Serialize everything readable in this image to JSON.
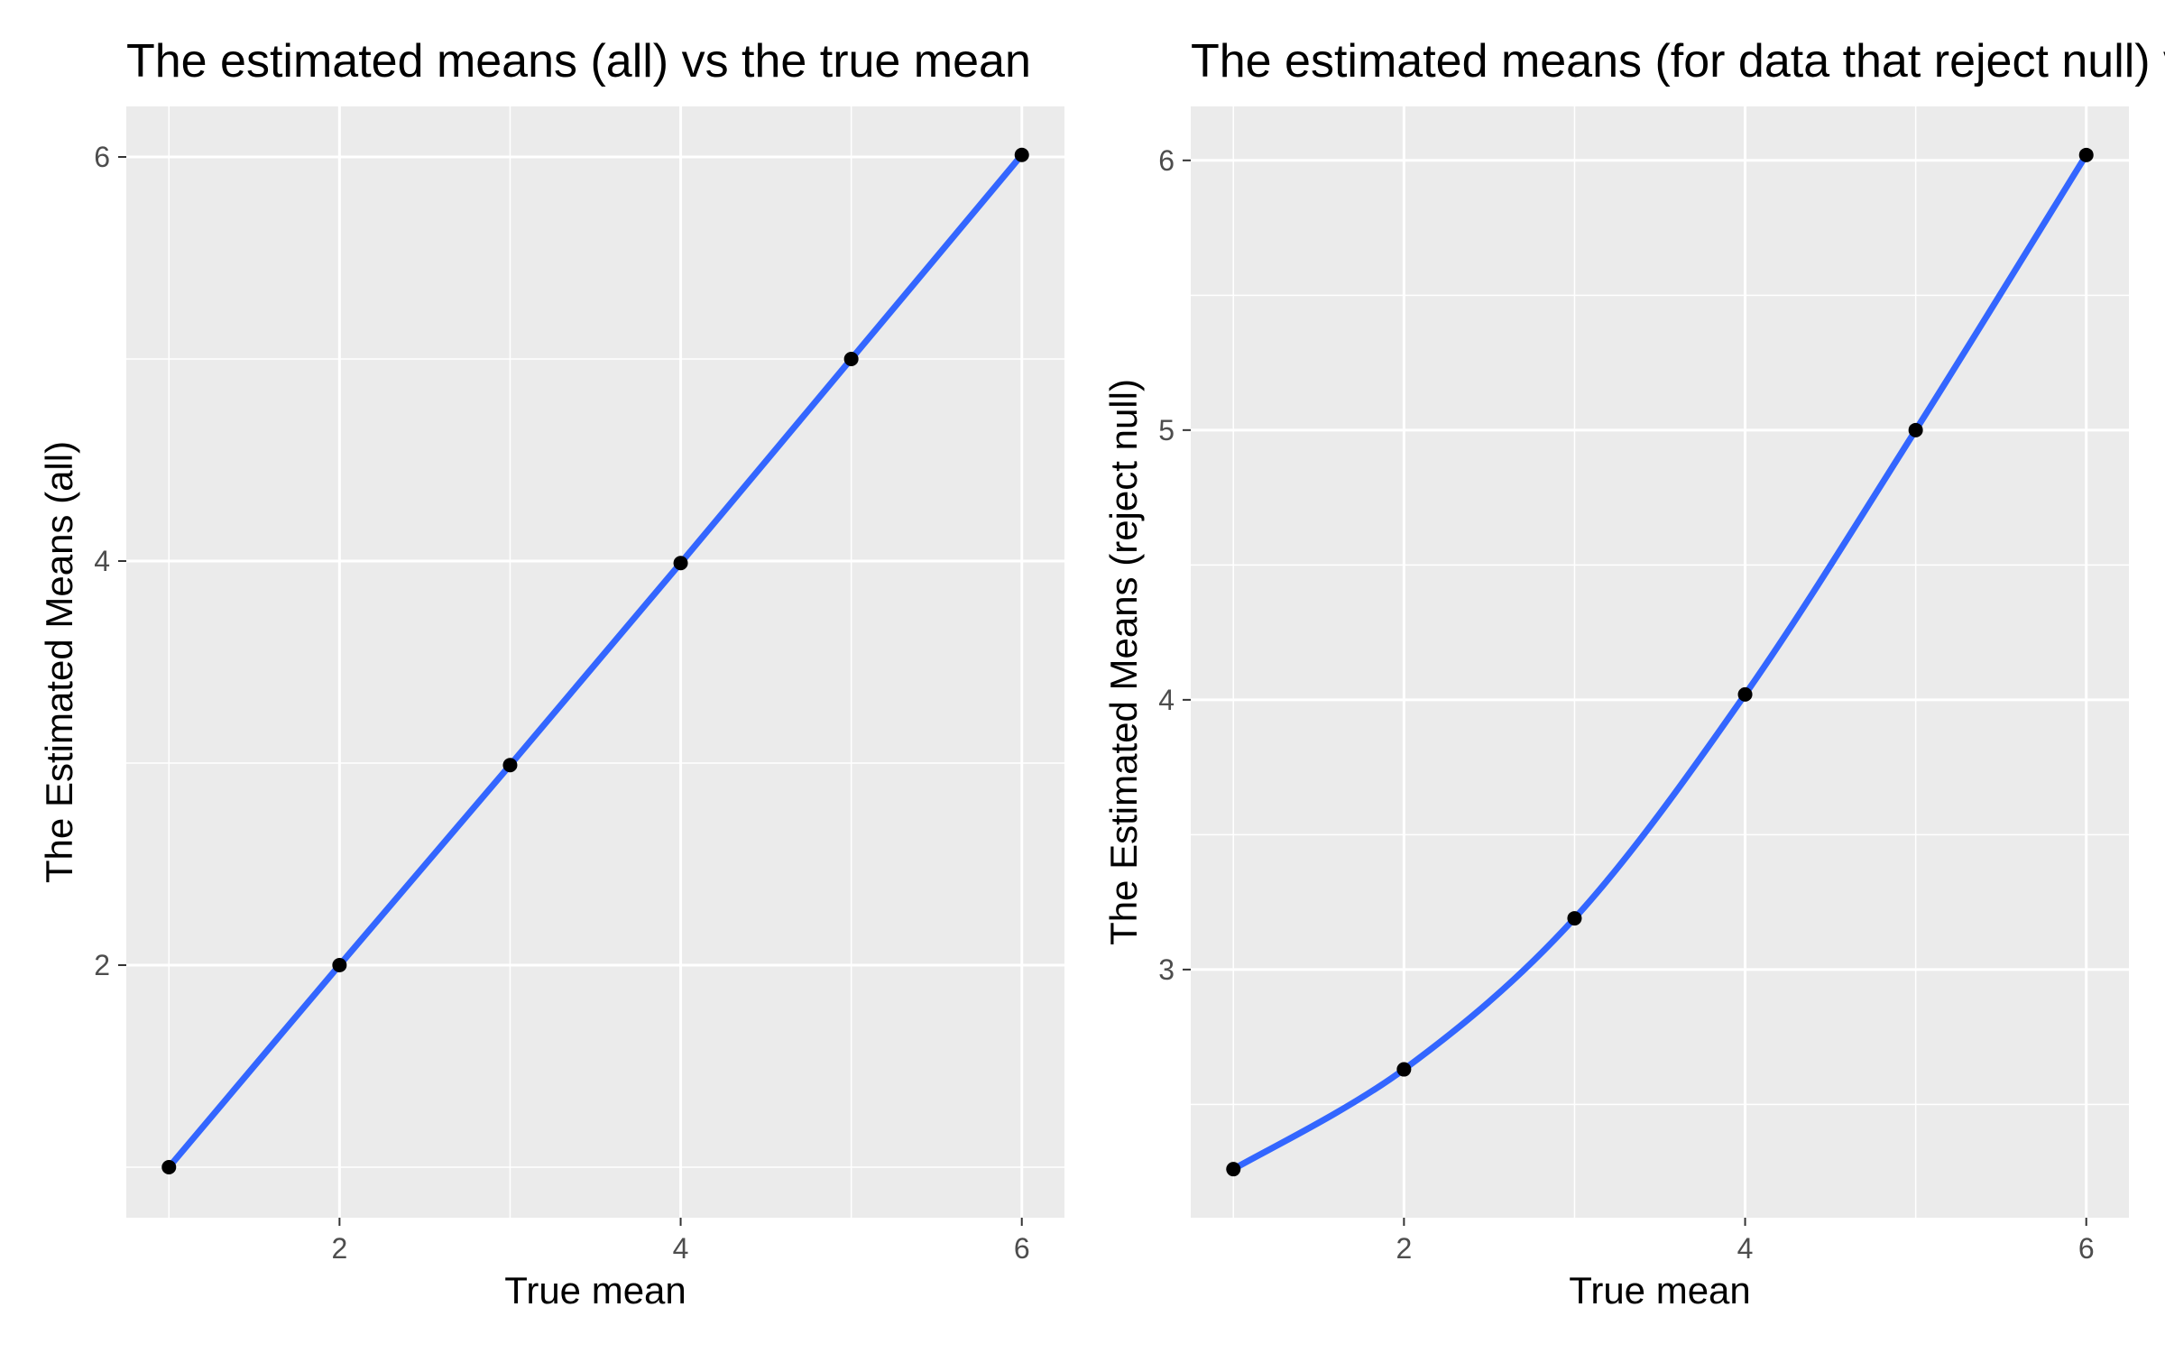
{
  "chart_data": [
    {
      "type": "line",
      "title": "The estimated means (all) vs the true mean",
      "xlabel": "True mean",
      "ylabel": "The Estimated Means (all)",
      "x": [
        1,
        2,
        3,
        4,
        5,
        6
      ],
      "series": [
        {
          "values": [
            1.0,
            2.0,
            2.99,
            3.99,
            5.0,
            6.01
          ],
          "points": true,
          "smooth": true,
          "color": "#3366FF"
        }
      ],
      "xlim": [
        0.75,
        6.25
      ],
      "ylim": [
        0.75,
        6.25
      ],
      "xticks": [
        2,
        4,
        6
      ],
      "yticks": [
        2,
        4,
        6
      ],
      "grid": true,
      "background": "#EBEBEB"
    },
    {
      "type": "line",
      "title": "The estimated means (for data that reject null) vs the true mean",
      "xlabel": "True mean",
      "ylabel": "The Estimated Means (reject null)",
      "x": [
        1,
        2,
        3,
        4,
        5,
        6
      ],
      "series": [
        {
          "values": [
            2.26,
            2.63,
            3.19,
            4.02,
            5.0,
            6.02
          ],
          "points": true,
          "smooth": true,
          "color": "#3366FF"
        }
      ],
      "xlim": [
        0.75,
        6.25
      ],
      "ylim": [
        2.08,
        6.2
      ],
      "xticks": [
        2,
        4,
        6
      ],
      "yticks": [
        3,
        4,
        5,
        6
      ],
      "grid": true,
      "background": "#EBEBEB"
    }
  ]
}
